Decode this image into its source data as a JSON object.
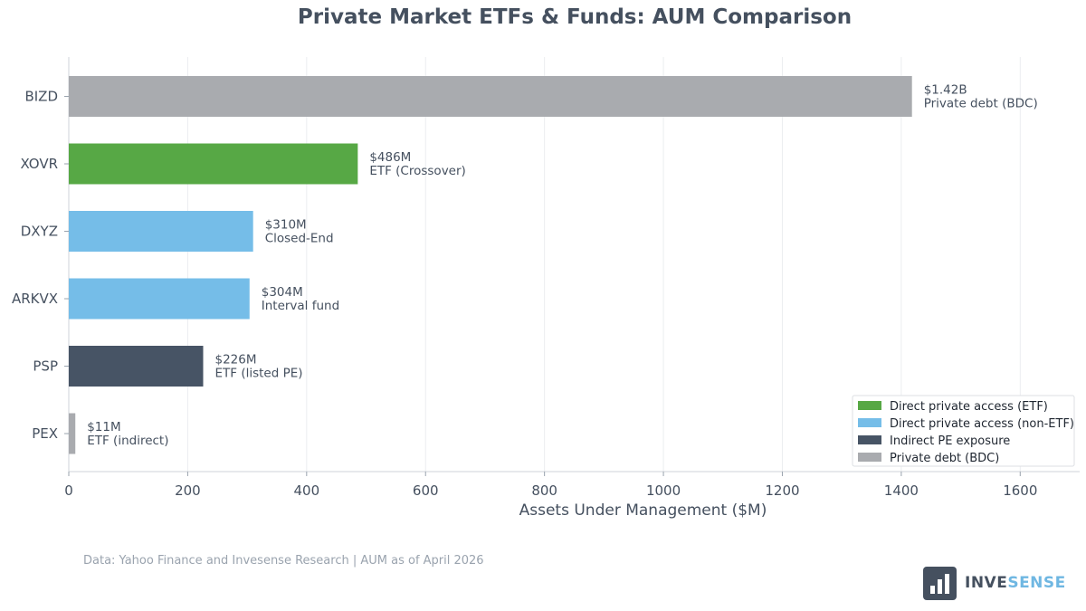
{
  "chart_data": {
    "type": "bar",
    "orientation": "horizontal",
    "title": "Private Market ETFs & Funds: AUM Comparison",
    "xlabel": "Assets Under Management ($M)",
    "ylabel": "",
    "xlim": [
      0,
      1700
    ],
    "x_ticks": [
      0,
      200,
      400,
      600,
      800,
      1000,
      1200,
      1400,
      1600
    ],
    "grid": true,
    "legend_position": "bottom-right",
    "categories": [
      "BIZD",
      "XOVR",
      "DXYZ",
      "ARKVX",
      "PSP",
      "PEX"
    ],
    "values": [
      1418,
      486,
      310,
      304,
      226,
      11
    ],
    "value_labels": [
      "$1.42B",
      "$486M",
      "$310M",
      "$304M",
      "$226M",
      "$11M"
    ],
    "type_labels": [
      "Private debt (BDC)",
      "ETF (Crossover)",
      "Closed-End",
      "Interval fund",
      "ETF (listed PE)",
      "ETF (indirect)"
    ],
    "groups": [
      "Private debt (BDC)",
      "Direct private access (ETF)",
      "Direct private access (non-ETF)",
      "Direct private access (non-ETF)",
      "Indirect PE exposure",
      "Private debt (BDC)"
    ],
    "legend": [
      {
        "name": "Direct private access (ETF)",
        "color": "#57a845"
      },
      {
        "name": "Direct private access (non-ETF)",
        "color": "#75bde8"
      },
      {
        "name": "Indirect PE exposure",
        "color": "#475465"
      },
      {
        "name": "Private debt (BDC)",
        "color": "#a9abaf"
      }
    ]
  },
  "footer": {
    "source": "Data: Yahoo Finance and Invesense Research | AUM as of April 2026"
  },
  "brand": {
    "name_part1": "INVE",
    "name_part2": "SENSE",
    "logo_icon": "bar-chart-logo-icon"
  },
  "colors": {
    "text": "#45505f",
    "grid": "#ebedf0",
    "axis": "#cfd3d8",
    "footer_text": "#9aa3ae",
    "brand_accent": "#6fb7e2"
  }
}
